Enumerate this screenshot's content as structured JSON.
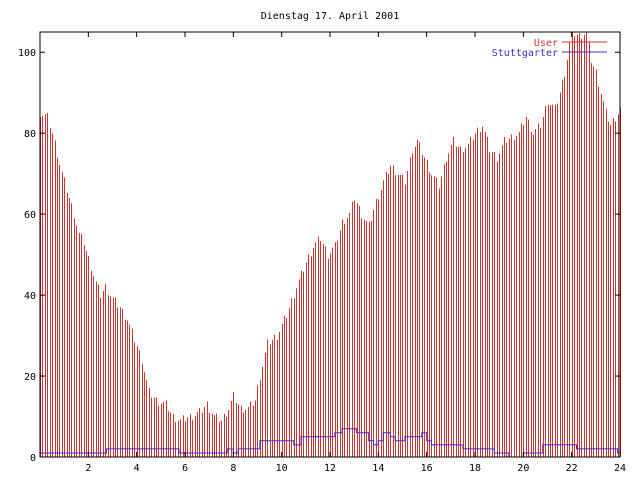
{
  "chart_data": {
    "type": "bar",
    "title": "Dienstag 17. April 2001",
    "xlabel": "",
    "ylabel": "",
    "xlim": [
      0,
      24
    ],
    "ylim": [
      0,
      105
    ],
    "x_ticks": [
      "2",
      "4",
      "6",
      "8",
      "10",
      "12",
      "14",
      "16",
      "18",
      "20",
      "22",
      "24"
    ],
    "y_ticks": [
      "0",
      "20",
      "40",
      "60",
      "80",
      "100"
    ],
    "grid": false,
    "legend_position": "top-right",
    "colors": {
      "user": "#cc3333",
      "stuttgarter": "#3333cc",
      "axis": "#000000"
    },
    "series": [
      {
        "name": "User",
        "style": "impulses",
        "anchors": [
          [
            0.0,
            85
          ],
          [
            0.3,
            84
          ],
          [
            0.5,
            80
          ],
          [
            0.7,
            75
          ],
          [
            0.9,
            70
          ],
          [
            1.1,
            66
          ],
          [
            1.4,
            60
          ],
          [
            1.6,
            55
          ],
          [
            1.8,
            53
          ],
          [
            2.0,
            49
          ],
          [
            2.3,
            43
          ],
          [
            2.5,
            40
          ],
          [
            2.7,
            42
          ],
          [
            3.0,
            39
          ],
          [
            3.3,
            37
          ],
          [
            3.6,
            34
          ],
          [
            3.9,
            29
          ],
          [
            4.2,
            24
          ],
          [
            4.5,
            16
          ],
          [
            4.8,
            14
          ],
          [
            5.2,
            13
          ],
          [
            5.5,
            10
          ],
          [
            5.8,
            9
          ],
          [
            6.2,
            10
          ],
          [
            6.6,
            11
          ],
          [
            6.9,
            13
          ],
          [
            7.2,
            10
          ],
          [
            7.5,
            9
          ],
          [
            7.8,
            12
          ],
          [
            8.0,
            15
          ],
          [
            8.3,
            12
          ],
          [
            8.6,
            12
          ],
          [
            8.9,
            14
          ],
          [
            9.1,
            20
          ],
          [
            9.4,
            28
          ],
          [
            9.8,
            30
          ],
          [
            10.2,
            35
          ],
          [
            10.6,
            42
          ],
          [
            11.0,
            48
          ],
          [
            11.3,
            52
          ],
          [
            11.6,
            54
          ],
          [
            11.9,
            50
          ],
          [
            12.2,
            52
          ],
          [
            12.5,
            58
          ],
          [
            12.8,
            60
          ],
          [
            13.0,
            64
          ],
          [
            13.3,
            60
          ],
          [
            13.6,
            57
          ],
          [
            13.9,
            63
          ],
          [
            14.2,
            68
          ],
          [
            14.5,
            72
          ],
          [
            14.8,
            70
          ],
          [
            15.1,
            68
          ],
          [
            15.4,
            76
          ],
          [
            15.6,
            78
          ],
          [
            15.9,
            74
          ],
          [
            16.2,
            70
          ],
          [
            16.5,
            67
          ],
          [
            16.8,
            74
          ],
          [
            17.1,
            78
          ],
          [
            17.4,
            76
          ],
          [
            17.7,
            77
          ],
          [
            18.0,
            80
          ],
          [
            18.3,
            82
          ],
          [
            18.6,
            76
          ],
          [
            18.9,
            74
          ],
          [
            19.2,
            78
          ],
          [
            19.5,
            79
          ],
          [
            19.8,
            80
          ],
          [
            20.1,
            84
          ],
          [
            20.4,
            80
          ],
          [
            20.7,
            82
          ],
          [
            21.0,
            88
          ],
          [
            21.3,
            86
          ],
          [
            21.5,
            90
          ],
          [
            21.7,
            95
          ],
          [
            21.9,
            102
          ],
          [
            22.0,
            105
          ],
          [
            22.3,
            104
          ],
          [
            22.6,
            105
          ],
          [
            22.8,
            98
          ],
          [
            23.0,
            95
          ],
          [
            23.2,
            90
          ],
          [
            23.4,
            85
          ],
          [
            23.6,
            82
          ],
          [
            23.8,
            84
          ],
          [
            24.0,
            86
          ]
        ]
      },
      {
        "name": "Stuttgarter",
        "style": "steps",
        "anchors": [
          [
            0.0,
            1
          ],
          [
            2.75,
            1
          ],
          [
            2.75,
            2
          ],
          [
            5.75,
            2
          ],
          [
            5.75,
            1
          ],
          [
            7.75,
            1
          ],
          [
            7.75,
            2
          ],
          [
            8.0,
            2
          ],
          [
            8.0,
            1
          ],
          [
            8.2,
            1
          ],
          [
            8.2,
            2
          ],
          [
            9.1,
            2
          ],
          [
            9.1,
            4
          ],
          [
            10.5,
            4
          ],
          [
            10.5,
            3
          ],
          [
            10.8,
            3
          ],
          [
            10.8,
            5
          ],
          [
            12.2,
            5
          ],
          [
            12.2,
            6
          ],
          [
            12.5,
            6
          ],
          [
            12.5,
            7
          ],
          [
            13.1,
            7
          ],
          [
            13.1,
            6
          ],
          [
            13.6,
            6
          ],
          [
            13.6,
            4
          ],
          [
            13.8,
            4
          ],
          [
            13.8,
            3
          ],
          [
            14.0,
            3
          ],
          [
            14.0,
            4
          ],
          [
            14.2,
            4
          ],
          [
            14.2,
            6
          ],
          [
            14.5,
            6
          ],
          [
            14.5,
            5
          ],
          [
            14.7,
            5
          ],
          [
            14.7,
            4
          ],
          [
            15.1,
            4
          ],
          [
            15.1,
            5
          ],
          [
            15.8,
            5
          ],
          [
            15.8,
            6
          ],
          [
            16.0,
            6
          ],
          [
            16.0,
            4
          ],
          [
            16.2,
            4
          ],
          [
            16.2,
            3
          ],
          [
            17.5,
            3
          ],
          [
            17.5,
            2
          ],
          [
            18.8,
            2
          ],
          [
            18.8,
            1
          ],
          [
            19.4,
            1
          ],
          [
            19.4,
            0
          ],
          [
            20.0,
            0
          ],
          [
            20.0,
            1
          ],
          [
            20.8,
            1
          ],
          [
            20.8,
            3
          ],
          [
            21.4,
            3
          ],
          [
            21.4,
            3
          ],
          [
            22.2,
            3
          ],
          [
            22.2,
            2
          ],
          [
            23.9,
            2
          ],
          [
            23.9,
            1
          ],
          [
            24.0,
            1
          ]
        ]
      }
    ]
  }
}
